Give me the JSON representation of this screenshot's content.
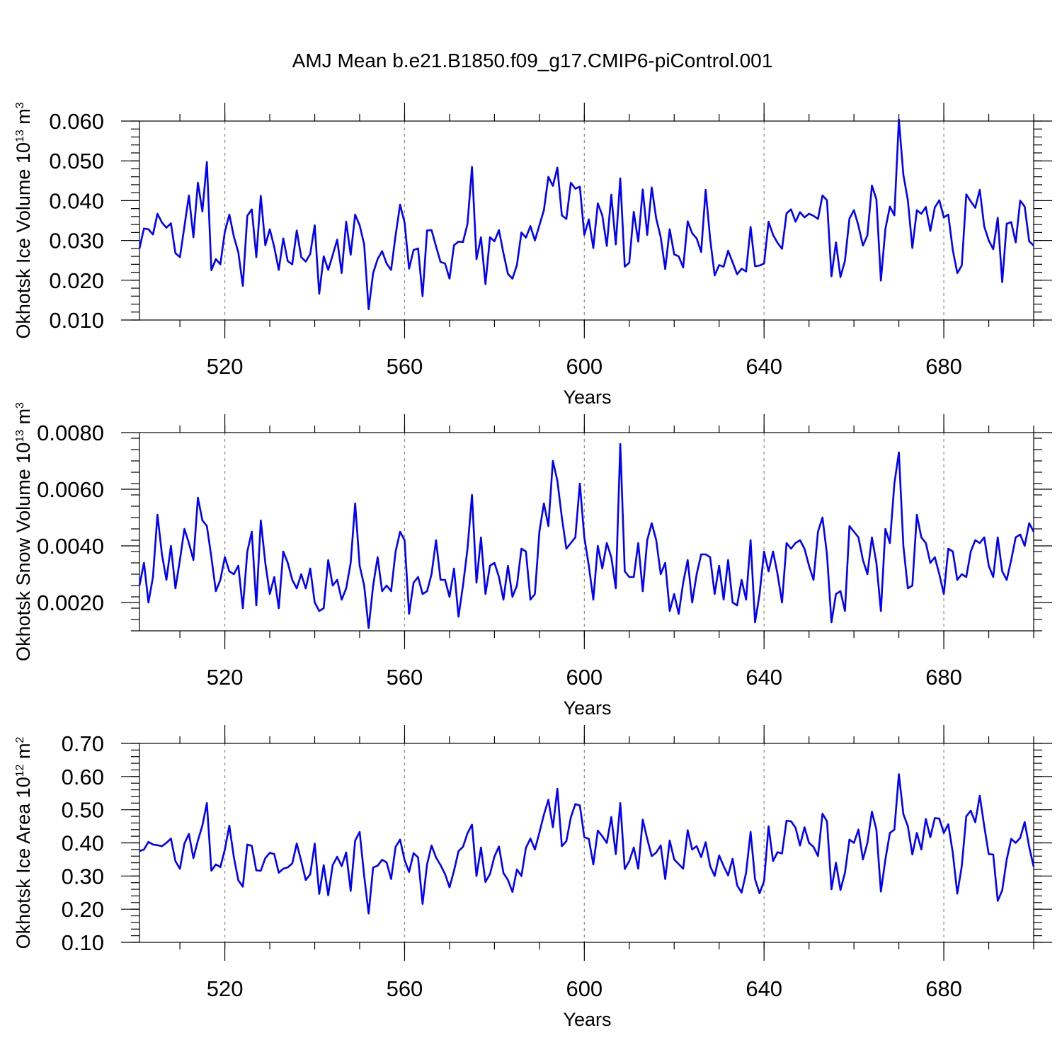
{
  "title": "AMJ Mean b.e21.B1850.f09_g17.CMIP6-piControl.001",
  "chart_data": [
    {
      "type": "line",
      "xlabel": "Years",
      "ylabel": "Okhotsk Ice Volume 10",
      "ylabel_exp": "13",
      "ylabel_unit": " m",
      "ylabel_unit_exp": "3",
      "xlim": [
        501,
        700
      ],
      "ylim": [
        0.01,
        0.06
      ],
      "x_ticks": [
        520,
        560,
        600,
        640,
        680
      ],
      "x_tick_labels": [
        "520",
        "560",
        "600",
        "640",
        "680"
      ],
      "y_ticks": [
        0.01,
        0.02,
        0.03,
        0.04,
        0.05,
        0.06
      ],
      "y_tick_labels": [
        "0.010",
        "0.020",
        "0.030",
        "0.040",
        "0.050",
        "0.060"
      ],
      "grid": "dashed vertical at x ticks",
      "series": [
        {
          "name": "Okhotsk Ice Volume",
          "x_start": 501,
          "values": [
            0.028,
            0.033,
            0.0328,
            0.0315,
            0.0367,
            0.0345,
            0.0332,
            0.0343,
            0.0268,
            0.0258,
            0.0335,
            0.0413,
            0.0308,
            0.0445,
            0.0373,
            0.0497,
            0.0225,
            0.0253,
            0.024,
            0.0322,
            0.0365,
            0.031,
            0.027,
            0.0186,
            0.0362,
            0.0378,
            0.0258,
            0.0412,
            0.0288,
            0.0328,
            0.0283,
            0.0226,
            0.0305,
            0.0248,
            0.024,
            0.0325,
            0.0258,
            0.0247,
            0.0266,
            0.0338,
            0.0166,
            0.026,
            0.0226,
            0.0263,
            0.0302,
            0.0218,
            0.0347,
            0.0264,
            0.0365,
            0.0338,
            0.029,
            0.0127,
            0.0218,
            0.0253,
            0.0273,
            0.0242,
            0.0226,
            0.0313,
            0.039,
            0.0345,
            0.0229,
            0.0276,
            0.028,
            0.016,
            0.0325,
            0.0326,
            0.0285,
            0.0246,
            0.0242,
            0.0204,
            0.0288,
            0.0297,
            0.0296,
            0.0342,
            0.0485,
            0.0253,
            0.0308,
            0.019,
            0.0308,
            0.0298,
            0.0326,
            0.0268,
            0.0216,
            0.0204,
            0.0238,
            0.032,
            0.0307,
            0.0336,
            0.03,
            0.0338,
            0.0376,
            0.046,
            0.0437,
            0.0483,
            0.0363,
            0.0354,
            0.0445,
            0.043,
            0.0435,
            0.0314,
            0.0353,
            0.0281,
            0.0393,
            0.0363,
            0.0286,
            0.0415,
            0.029,
            0.0456,
            0.0234,
            0.0244,
            0.0372,
            0.0297,
            0.0428,
            0.0314,
            0.0433,
            0.0355,
            0.0308,
            0.0228,
            0.0328,
            0.0265,
            0.026,
            0.0232,
            0.0348,
            0.0318,
            0.0305,
            0.0271,
            0.0427,
            0.0304,
            0.0212,
            0.0238,
            0.0234,
            0.0274,
            0.0245,
            0.0215,
            0.0229,
            0.0222,
            0.0334,
            0.0235,
            0.0237,
            0.0242,
            0.0347,
            0.0314,
            0.0294,
            0.0279,
            0.0368,
            0.0378,
            0.0347,
            0.0371,
            0.0358,
            0.0367,
            0.0362,
            0.0354,
            0.0413,
            0.0401,
            0.021,
            0.0295,
            0.0208,
            0.0249,
            0.0355,
            0.0376,
            0.0337,
            0.0287,
            0.0313,
            0.0438,
            0.0403,
            0.0199,
            0.0329,
            0.0385,
            0.0363,
            0.0604,
            0.0465,
            0.0401,
            0.0281,
            0.0376,
            0.0367,
            0.0384,
            0.0324,
            0.0383,
            0.0401,
            0.0358,
            0.0365,
            0.0276,
            0.0218,
            0.0237,
            0.0416,
            0.0398,
            0.0382,
            0.0427,
            0.0335,
            0.03,
            0.0278,
            0.0357,
            0.0195,
            0.0342,
            0.0346,
            0.0295,
            0.04,
            0.0385,
            0.0298,
            0.0287
          ]
        }
      ]
    },
    {
      "type": "line",
      "xlabel": "Years",
      "ylabel": "Okhotsk Snow Volume 10",
      "ylabel_exp": "13",
      "ylabel_unit": " m",
      "ylabel_unit_exp": "3",
      "xlim": [
        501,
        700
      ],
      "ylim": [
        0.001,
        0.008
      ],
      "x_ticks": [
        520,
        560,
        600,
        640,
        680
      ],
      "x_tick_labels": [
        "520",
        "560",
        "600",
        "640",
        "680"
      ],
      "y_ticks": [
        0.002,
        0.004,
        0.006,
        0.008
      ],
      "y_tick_labels": [
        "0.0020",
        "0.0040",
        "0.0060",
        "0.0080"
      ],
      "grid": "dashed vertical at x ticks",
      "series": [
        {
          "name": "Okhotsk Snow Volume",
          "x_start": 501,
          "values": [
            0.0026,
            0.0034,
            0.002,
            0.0029,
            0.0051,
            0.0037,
            0.0028,
            0.004,
            0.0025,
            0.0035,
            0.0046,
            0.0041,
            0.0035,
            0.0057,
            0.0049,
            0.0047,
            0.0036,
            0.0024,
            0.0028,
            0.0036,
            0.0031,
            0.003,
            0.0033,
            0.0018,
            0.0038,
            0.0045,
            0.0019,
            0.0049,
            0.0034,
            0.0023,
            0.0029,
            0.0018,
            0.0038,
            0.0034,
            0.0028,
            0.0025,
            0.003,
            0.0025,
            0.0032,
            0.002,
            0.0017,
            0.0018,
            0.0035,
            0.0026,
            0.0028,
            0.0021,
            0.0025,
            0.0034,
            0.0055,
            0.0033,
            0.0026,
            0.0011,
            0.0026,
            0.0036,
            0.0024,
            0.0026,
            0.0024,
            0.0038,
            0.0045,
            0.0042,
            0.0016,
            0.0027,
            0.0029,
            0.0023,
            0.0024,
            0.003,
            0.0042,
            0.0028,
            0.0028,
            0.0022,
            0.0032,
            0.0015,
            0.0026,
            0.0039,
            0.0058,
            0.0027,
            0.0043,
            0.0023,
            0.0033,
            0.0034,
            0.0029,
            0.0021,
            0.0033,
            0.0022,
            0.0026,
            0.0039,
            0.0038,
            0.0021,
            0.0023,
            0.0045,
            0.0055,
            0.0047,
            0.007,
            0.0063,
            0.005,
            0.0039,
            0.0041,
            0.0043,
            0.0062,
            0.0043,
            0.0033,
            0.0021,
            0.004,
            0.0032,
            0.0041,
            0.0036,
            0.0025,
            0.0076,
            0.0031,
            0.0029,
            0.0029,
            0.0041,
            0.0024,
            0.0042,
            0.0048,
            0.0042,
            0.003,
            0.0034,
            0.0017,
            0.0023,
            0.0016,
            0.0027,
            0.0035,
            0.002,
            0.003,
            0.0037,
            0.0037,
            0.0036,
            0.0023,
            0.0033,
            0.0021,
            0.0035,
            0.002,
            0.0019,
            0.0028,
            0.0021,
            0.0042,
            0.0013,
            0.0023,
            0.0038,
            0.0031,
            0.0038,
            0.003,
            0.002,
            0.0041,
            0.0039,
            0.0041,
            0.0042,
            0.0039,
            0.0033,
            0.0028,
            0.0045,
            0.005,
            0.0037,
            0.0013,
            0.0023,
            0.0024,
            0.0017,
            0.0047,
            0.0045,
            0.0043,
            0.0035,
            0.003,
            0.0043,
            0.0034,
            0.0017,
            0.0046,
            0.0041,
            0.0062,
            0.0073,
            0.004,
            0.0025,
            0.0026,
            0.0051,
            0.0043,
            0.0041,
            0.0034,
            0.0036,
            0.003,
            0.0023,
            0.0039,
            0.0038,
            0.0028,
            0.003,
            0.0029,
            0.0038,
            0.0042,
            0.0041,
            0.0043,
            0.0033,
            0.0029,
            0.0043,
            0.0031,
            0.0028,
            0.0035,
            0.0043,
            0.0044,
            0.004,
            0.0048,
            0.0045
          ]
        }
      ]
    },
    {
      "type": "line",
      "xlabel": "Years",
      "ylabel": "Okhotsk Ice Area 10",
      "ylabel_exp": "12",
      "ylabel_unit": " m",
      "ylabel_unit_exp": "2",
      "xlim": [
        501,
        700
      ],
      "ylim": [
        0.1,
        0.7
      ],
      "x_ticks": [
        520,
        560,
        600,
        640,
        680
      ],
      "x_tick_labels": [
        "520",
        "560",
        "600",
        "640",
        "680"
      ],
      "y_ticks": [
        0.1,
        0.2,
        0.3,
        0.4,
        0.5,
        0.6,
        0.7
      ],
      "y_tick_labels": [
        "0.10",
        "0.20",
        "0.30",
        "0.40",
        "0.50",
        "0.60",
        "0.70"
      ],
      "grid": "dashed vertical at x ticks",
      "series": [
        {
          "name": "Okhotsk Ice Area",
          "x_start": 501,
          "values": [
            0.375,
            0.38,
            0.403,
            0.395,
            0.393,
            0.39,
            0.4,
            0.413,
            0.345,
            0.322,
            0.398,
            0.427,
            0.354,
            0.407,
            0.452,
            0.52,
            0.316,
            0.335,
            0.327,
            0.38,
            0.452,
            0.357,
            0.287,
            0.268,
            0.395,
            0.391,
            0.317,
            0.316,
            0.354,
            0.37,
            0.366,
            0.31,
            0.322,
            0.326,
            0.338,
            0.398,
            0.345,
            0.288,
            0.305,
            0.398,
            0.246,
            0.333,
            0.242,
            0.333,
            0.358,
            0.33,
            0.371,
            0.255,
            0.407,
            0.433,
            0.301,
            0.187,
            0.326,
            0.331,
            0.349,
            0.341,
            0.291,
            0.388,
            0.41,
            0.348,
            0.312,
            0.369,
            0.356,
            0.216,
            0.335,
            0.392,
            0.356,
            0.333,
            0.306,
            0.266,
            0.316,
            0.375,
            0.388,
            0.429,
            0.455,
            0.3,
            0.386,
            0.282,
            0.306,
            0.359,
            0.389,
            0.309,
            0.288,
            0.252,
            0.32,
            0.3,
            0.385,
            0.413,
            0.38,
            0.431,
            0.485,
            0.53,
            0.447,
            0.563,
            0.39,
            0.405,
            0.477,
            0.517,
            0.513,
            0.417,
            0.412,
            0.335,
            0.437,
            0.42,
            0.4,
            0.478,
            0.366,
            0.52,
            0.321,
            0.345,
            0.386,
            0.322,
            0.47,
            0.412,
            0.36,
            0.371,
            0.392,
            0.291,
            0.407,
            0.35,
            0.336,
            0.322,
            0.438,
            0.38,
            0.39,
            0.357,
            0.402,
            0.33,
            0.3,
            0.362,
            0.33,
            0.302,
            0.352,
            0.272,
            0.25,
            0.31,
            0.433,
            0.29,
            0.248,
            0.285,
            0.45,
            0.345,
            0.372,
            0.368,
            0.467,
            0.465,
            0.446,
            0.392,
            0.447,
            0.4,
            0.388,
            0.36,
            0.488,
            0.465,
            0.26,
            0.34,
            0.258,
            0.31,
            0.41,
            0.4,
            0.44,
            0.35,
            0.4,
            0.494,
            0.44,
            0.253,
            0.35,
            0.43,
            0.44,
            0.607,
            0.487,
            0.45,
            0.365,
            0.43,
            0.38,
            0.472,
            0.417,
            0.475,
            0.473,
            0.43,
            0.456,
            0.37,
            0.247,
            0.33,
            0.48,
            0.497,
            0.462,
            0.542,
            0.45,
            0.366,
            0.365,
            0.225,
            0.257,
            0.35,
            0.412,
            0.4,
            0.415,
            0.463,
            0.388,
            0.328
          ]
        }
      ]
    }
  ]
}
